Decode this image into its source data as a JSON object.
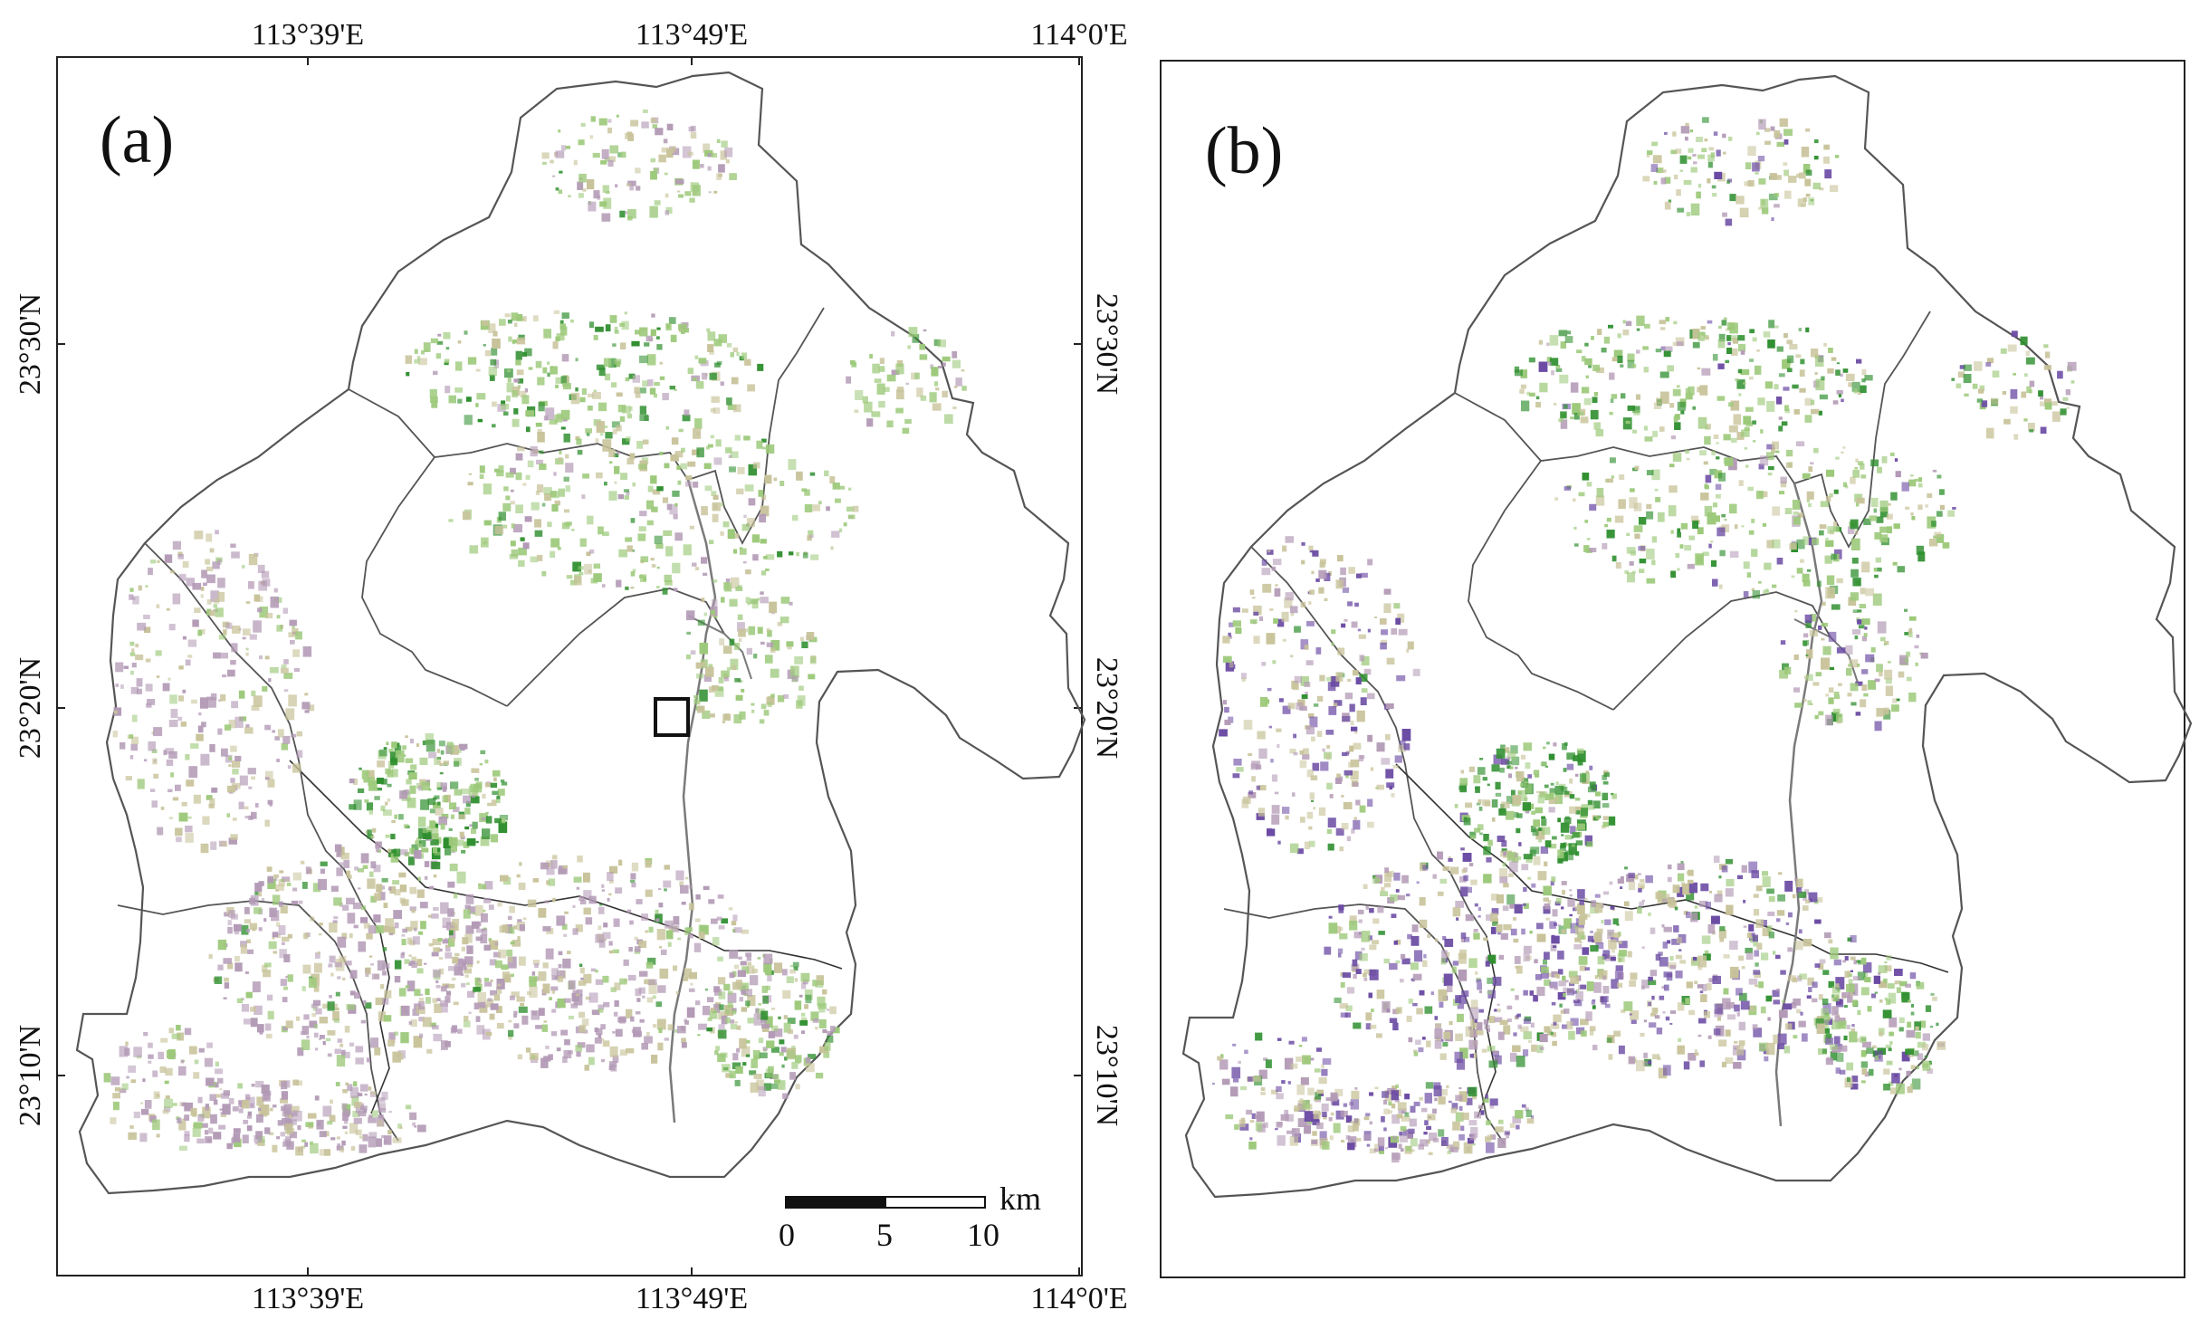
{
  "panels": {
    "a": {
      "label": "(a)"
    },
    "b": {
      "label": "(b)"
    }
  },
  "axes": {
    "longitude_ticks": [
      "113°39'E",
      "113°49'E",
      "114°0'E"
    ],
    "latitude_ticks": [
      "23°30'N",
      "23°20'N",
      "23°10'N"
    ]
  },
  "scale_bar": {
    "unit": "km",
    "ticks": [
      "0",
      "5",
      "10"
    ]
  },
  "colors": {
    "boundary": "#555555",
    "river": "#7a7a7a",
    "green_dark": "#2f8f2f",
    "green_light": "#9cc97a",
    "beige": "#c8c39a",
    "mauve": "#b39ab6",
    "purple": "#6a4aa3"
  }
}
